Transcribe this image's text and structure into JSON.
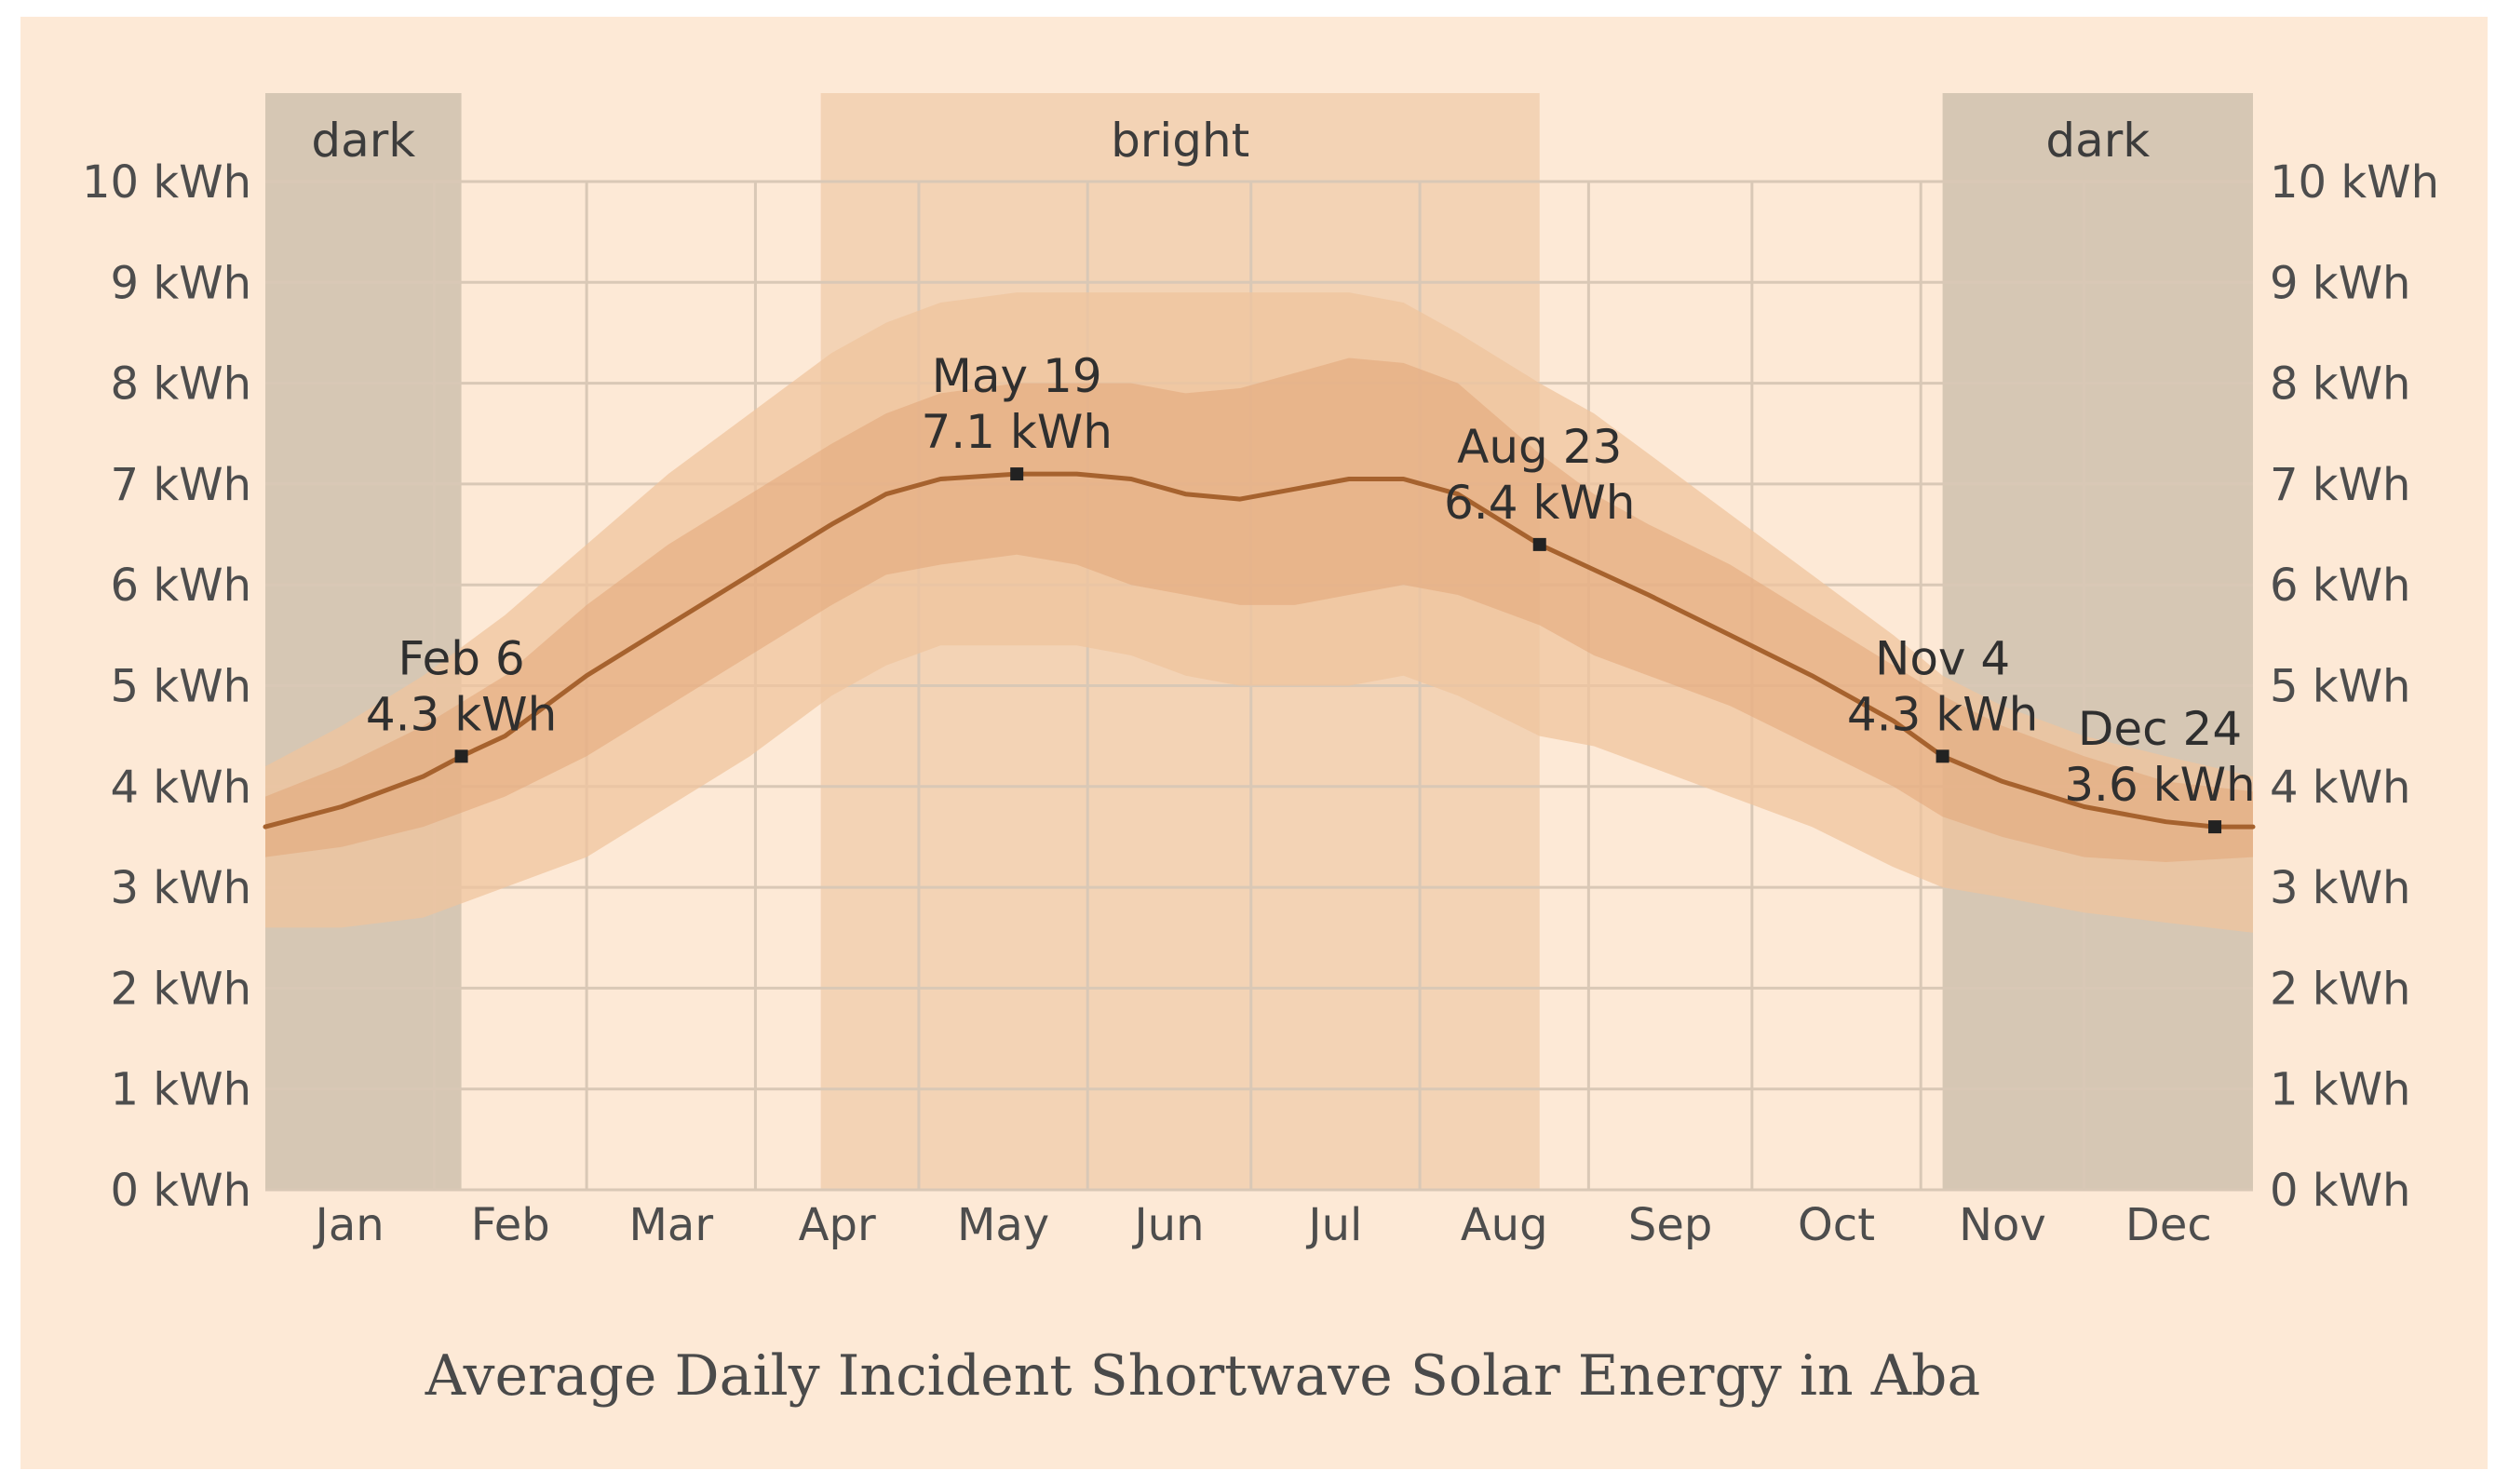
{
  "chart_data": {
    "type": "area",
    "title": "Average Daily Incident Shortwave Solar Energy in Aba",
    "xlabel": "",
    "ylabel": "",
    "x_unit": "day of year",
    "xlim": [
      1,
      366
    ],
    "ylim": [
      0,
      10
    ],
    "y_ticks": [
      "0 kWh",
      "1 kWh",
      "2 kWh",
      "3 kWh",
      "4 kWh",
      "5 kWh",
      "6 kWh",
      "7 kWh",
      "8 kWh",
      "9 kWh",
      "10 kWh"
    ],
    "months": [
      "Jan",
      "Feb",
      "Mar",
      "Apr",
      "May",
      "Jun",
      "Jul",
      "Aug",
      "Sep",
      "Oct",
      "Nov",
      "Dec"
    ],
    "grid": true,
    "colors": {
      "background": "#fde9d6",
      "dark_band": "#d6c7b4",
      "bright_band": "#f3d3b5",
      "outer_band": "#efc49d",
      "inner_band": "#e1a578",
      "line": "#a6622e",
      "grid": "#d9c8b6",
      "marker": "#222222"
    },
    "periods": [
      {
        "label": "dark",
        "start_day": 1,
        "end_day": 37
      },
      {
        "label": "bright",
        "start_day": 103,
        "end_day": 235
      },
      {
        "label": "dark",
        "start_day": 309,
        "end_day": 366
      }
    ],
    "series": [
      {
        "role": "mean",
        "x": [
          1,
          15,
          30,
          37,
          45,
          60,
          75,
          90,
          105,
          115,
          125,
          139,
          150,
          160,
          170,
          180,
          190,
          200,
          210,
          220,
          235,
          245,
          255,
          270,
          285,
          300,
          309,
          320,
          335,
          350,
          359,
          366
        ],
        "y": [
          3.6,
          3.8,
          4.1,
          4.3,
          4.5,
          5.1,
          5.6,
          6.1,
          6.6,
          6.9,
          7.05,
          7.1,
          7.1,
          7.05,
          6.9,
          6.85,
          6.95,
          7.05,
          7.05,
          6.9,
          6.4,
          6.15,
          5.9,
          5.5,
          5.1,
          4.65,
          4.3,
          4.05,
          3.8,
          3.65,
          3.6,
          3.6
        ]
      },
      {
        "role": "25th_to_75th_percentile",
        "x": [
          1,
          15,
          30,
          45,
          60,
          75,
          90,
          105,
          115,
          125,
          139,
          150,
          160,
          170,
          180,
          190,
          200,
          210,
          220,
          235,
          245,
          255,
          270,
          285,
          300,
          309,
          320,
          335,
          350,
          366
        ],
        "low": [
          3.3,
          3.4,
          3.6,
          3.9,
          4.3,
          4.8,
          5.3,
          5.8,
          6.1,
          6.2,
          6.3,
          6.2,
          6.0,
          5.9,
          5.8,
          5.8,
          5.9,
          6.0,
          5.9,
          5.6,
          5.3,
          5.1,
          4.8,
          4.4,
          4.0,
          3.7,
          3.5,
          3.3,
          3.25,
          3.3
        ],
        "high": [
          3.9,
          4.2,
          4.6,
          5.1,
          5.8,
          6.4,
          6.9,
          7.4,
          7.7,
          7.9,
          8.0,
          8.0,
          8.0,
          7.9,
          7.95,
          8.1,
          8.25,
          8.2,
          8.0,
          7.3,
          6.9,
          6.6,
          6.2,
          5.7,
          5.2,
          4.9,
          4.6,
          4.3,
          4.05,
          3.95
        ]
      },
      {
        "role": "10th_to_90th_percentile",
        "x": [
          1,
          15,
          30,
          45,
          60,
          75,
          90,
          105,
          115,
          125,
          139,
          150,
          160,
          170,
          180,
          190,
          200,
          210,
          220,
          235,
          245,
          255,
          270,
          285,
          300,
          309,
          320,
          335,
          350,
          366
        ],
        "low": [
          2.6,
          2.6,
          2.7,
          3.0,
          3.3,
          3.8,
          4.3,
          4.9,
          5.2,
          5.4,
          5.4,
          5.4,
          5.3,
          5.1,
          5.0,
          5.0,
          5.0,
          5.1,
          4.9,
          4.5,
          4.4,
          4.2,
          3.9,
          3.6,
          3.2,
          3.0,
          2.9,
          2.75,
          2.65,
          2.55
        ],
        "high": [
          4.2,
          4.6,
          5.1,
          5.7,
          6.4,
          7.1,
          7.7,
          8.3,
          8.6,
          8.8,
          8.9,
          8.9,
          8.9,
          8.9,
          8.9,
          8.9,
          8.9,
          8.8,
          8.5,
          8.0,
          7.7,
          7.3,
          6.7,
          6.1,
          5.5,
          5.1,
          4.8,
          4.5,
          4.3,
          4.1
        ]
      }
    ],
    "annotations": [
      {
        "date": "Feb 6",
        "value": "4.3 kWh",
        "x": 37,
        "y": 4.3
      },
      {
        "date": "May 19",
        "value": "7.1 kWh",
        "x": 139,
        "y": 7.1
      },
      {
        "date": "Aug 23",
        "value": "6.4 kWh",
        "x": 235,
        "y": 6.4
      },
      {
        "date": "Nov 4",
        "value": "4.3 kWh",
        "x": 309,
        "y": 4.3
      },
      {
        "date": "Dec 24",
        "value": "3.6 kWh",
        "x": 359,
        "y": 3.6
      }
    ]
  }
}
